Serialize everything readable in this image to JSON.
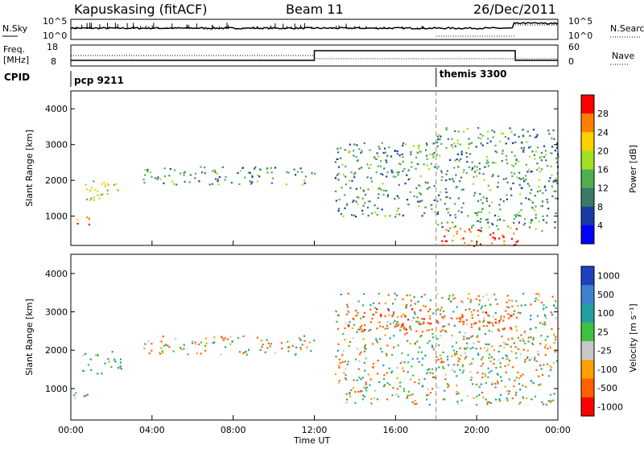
{
  "header": {
    "station": "Kapuskasing (fitACF)",
    "beam": "Beam 11",
    "date": "26/Dec/2011"
  },
  "summary": {
    "nsky_label": "N.Sky",
    "nsky_ticks": [
      "10^5",
      "10^0"
    ],
    "nsearch_label": "N.Search",
    "nsearch_ticks": [
      "10^5",
      "10^0"
    ],
    "freq_label_1": "Freq.",
    "freq_label_2": "[MHz]",
    "freq_ticks": [
      "18",
      "8"
    ],
    "nave_label": "Nave",
    "nave_ticks": [
      "60",
      "0"
    ],
    "cpid_label": "CPID",
    "cpid_segments": [
      {
        "label": "pcp 9211",
        "start_hour": 0
      },
      {
        "label": "themis 3300",
        "start_hour": 18
      }
    ]
  },
  "x_axis": {
    "label": "Time UT",
    "ticks": [
      "00:00",
      "04:00",
      "08:00",
      "12:00",
      "16:00",
      "20:00",
      "00:00"
    ],
    "tick_hours": [
      0,
      4,
      8,
      12,
      16,
      20,
      24
    ]
  },
  "chart_data": [
    {
      "type": "heatmap",
      "panel": "power",
      "ylabel": "Slant Range [km]",
      "ylim": [
        180,
        4500
      ],
      "yticks": [
        "4000",
        "3000",
        "2000",
        "1000"
      ],
      "ytick_values": [
        4000,
        3000,
        2000,
        1000
      ],
      "xlim_hours": [
        0,
        24
      ],
      "colorbar_label": "Power [dB]",
      "colorbar_ticks": [
        "28",
        "24",
        "20",
        "16",
        "12",
        "8",
        "4"
      ],
      "colorbar_colors": [
        "#ff0000",
        "#ff8000",
        "#ffd000",
        "#a0e020",
        "#50b050",
        "#3a7a6a",
        "#1a3aa8",
        "#0000ff"
      ],
      "features": [
        {
          "hours": [
            0.0,
            1.0
          ],
          "range_km": [
            750,
            1000
          ],
          "level_db": 20
        },
        {
          "hours": [
            0.5,
            2.5
          ],
          "range_km": [
            1400,
            2000
          ],
          "level_db": 16
        },
        {
          "hours": [
            3.5,
            12.0
          ],
          "range_km": [
            1900,
            2400
          ],
          "level_db": 8
        },
        {
          "hours": [
            13.0,
            18.0
          ],
          "range_km": [
            1000,
            3100
          ],
          "level_db": 8
        },
        {
          "hours": [
            18.0,
            24.0
          ],
          "range_km": [
            600,
            3500
          ],
          "level_db": 8
        },
        {
          "hours": [
            18.0,
            22.0
          ],
          "range_km": [
            180,
            700
          ],
          "level_db": 24
        }
      ]
    },
    {
      "type": "heatmap",
      "panel": "velocity",
      "ylabel": "Slant Range [km]",
      "ylim": [
        180,
        4500
      ],
      "yticks": [
        "4000",
        "3000",
        "2000",
        "1000"
      ],
      "ytick_values": [
        4000,
        3000,
        2000,
        1000
      ],
      "xlim_hours": [
        0,
        24
      ],
      "colorbar_label": "Velocity [m s⁻¹]",
      "colorbar_ticks": [
        "1000",
        "500",
        "100",
        "25",
        "-25",
        "-100",
        "-500",
        "-1000"
      ],
      "colorbar_colors": [
        "#2040c0",
        "#4080d0",
        "#20a0a0",
        "#40c040",
        "#c8c8c8",
        "#ffa000",
        "#ff6000",
        "#ff0000"
      ],
      "features": [
        {
          "hours": [
            0.0,
            1.0
          ],
          "range_km": [
            750,
            1000
          ],
          "velocity_ms": 0
        },
        {
          "hours": [
            0.5,
            2.5
          ],
          "range_km": [
            1400,
            2000
          ],
          "velocity_ms": 100
        },
        {
          "hours": [
            3.5,
            12.0
          ],
          "range_km": [
            1900,
            2400
          ],
          "velocity_ms": 0
        },
        {
          "hours": [
            13.0,
            24.0
          ],
          "range_km": [
            600,
            3500
          ],
          "velocity_ms": 0
        },
        {
          "hours": [
            13.5,
            22.0
          ],
          "range_km": [
            2500,
            3100
          ],
          "velocity_ms": -200
        }
      ]
    }
  ]
}
